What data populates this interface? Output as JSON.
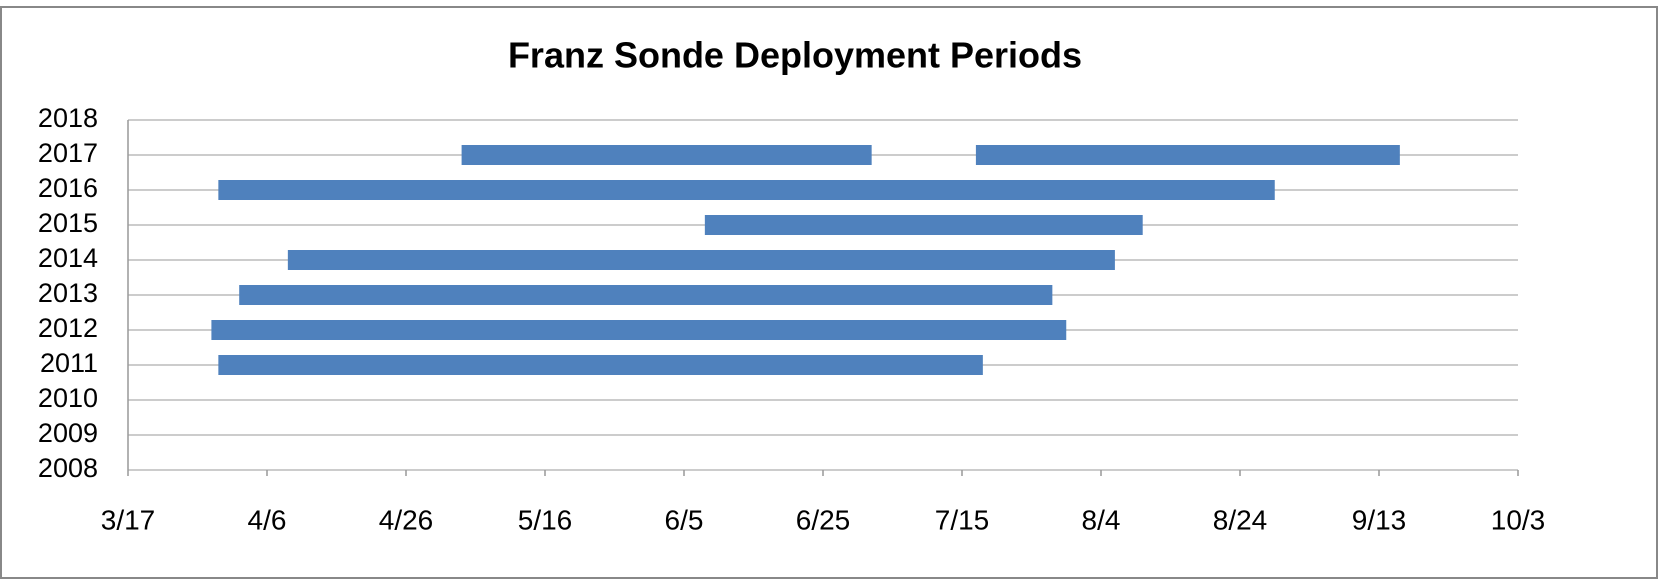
{
  "chart_data": {
    "type": "range_bar",
    "title": "Franz Sonde Deployment Periods",
    "color": "#4f81bd",
    "grid": true,
    "xlim": [
      76,
      276
    ],
    "xticks": [
      {
        "value": 76,
        "label": "3/17"
      },
      {
        "value": 96,
        "label": "4/6"
      },
      {
        "value": 116,
        "label": "4/26"
      },
      {
        "value": 136,
        "label": "5/16"
      },
      {
        "value": 156,
        "label": "6/5"
      },
      {
        "value": 176,
        "label": "6/25"
      },
      {
        "value": 196,
        "label": "7/15"
      },
      {
        "value": 216,
        "label": "8/4"
      },
      {
        "value": 236,
        "label": "8/24"
      },
      {
        "value": 256,
        "label": "9/13"
      },
      {
        "value": 276,
        "label": "10/3"
      }
    ],
    "ylim": [
      2008,
      2018
    ],
    "yticks": [
      2008,
      2009,
      2010,
      2011,
      2012,
      2013,
      2014,
      2015,
      2016,
      2017,
      2018
    ],
    "bars": [
      {
        "y": 2017,
        "start": 124,
        "end": 183
      },
      {
        "y": 2017,
        "start": 198,
        "end": 259
      },
      {
        "y": 2016,
        "start": 89,
        "end": 241
      },
      {
        "y": 2015,
        "start": 159,
        "end": 222
      },
      {
        "y": 2014,
        "start": 99,
        "end": 218
      },
      {
        "y": 2013,
        "start": 92,
        "end": 209
      },
      {
        "y": 2012,
        "start": 88,
        "end": 211
      },
      {
        "y": 2011,
        "start": 89,
        "end": 199
      }
    ]
  }
}
